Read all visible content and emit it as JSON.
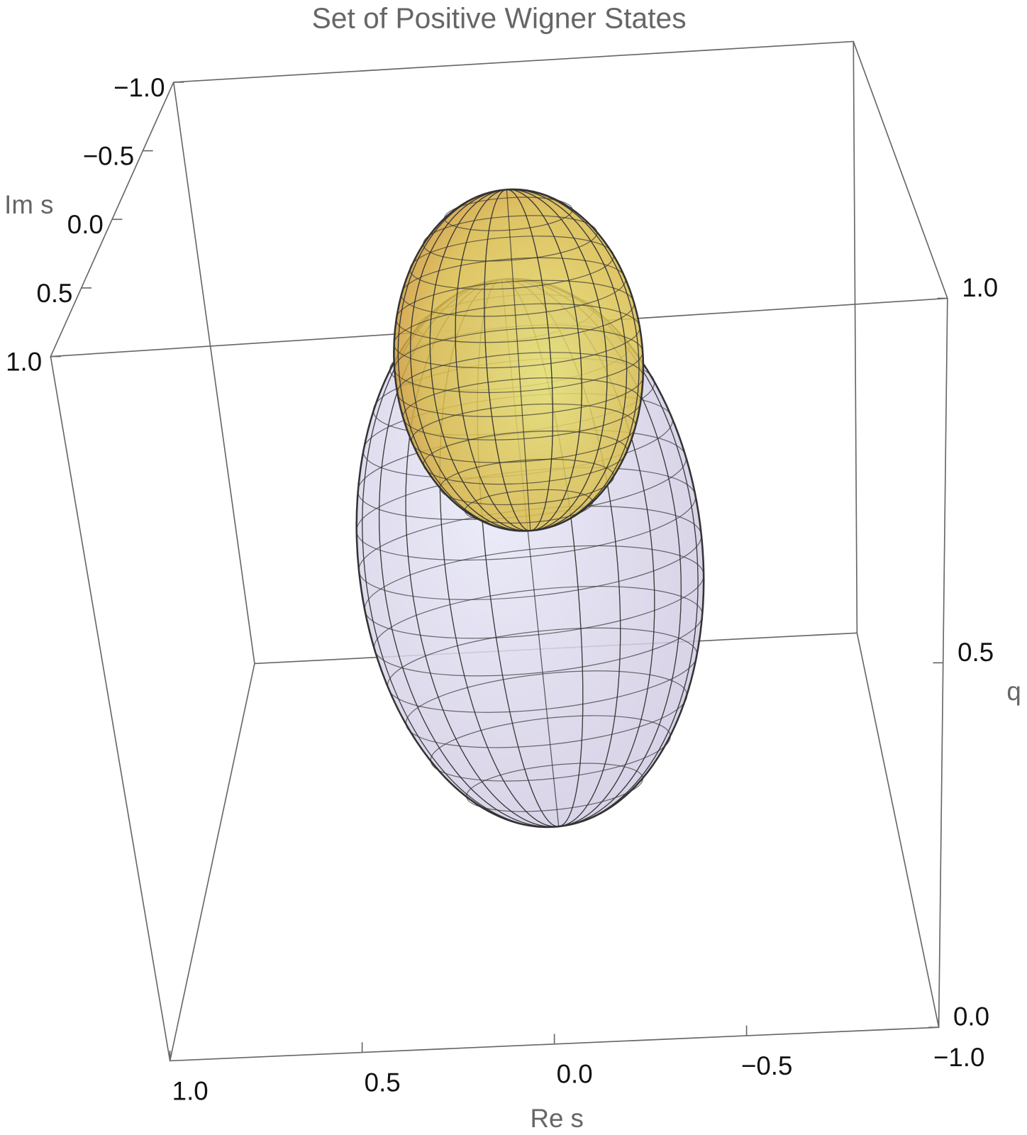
{
  "chart_data": {
    "type": "surface3d",
    "title": "Set of Positive Wigner States",
    "x_label": "Re s",
    "y_label": "Im s",
    "z_label": "q",
    "xlim": [
      1,
      -1
    ],
    "xticks": [
      {
        "value": 1,
        "label": "1.0"
      },
      0.5,
      {
        "value": 0,
        "label": "0.0"
      },
      {
        "value": -0.5,
        "label": "−0.5"
      },
      {
        "value": -1,
        "label": "−1.0"
      }
    ],
    "ylim": [
      -1,
      1
    ],
    "yticks": [
      {
        "value": -1,
        "label": "−1.0"
      },
      {
        "value": -0.5,
        "label": "−0.5"
      },
      {
        "value": 0,
        "label": "0.0"
      },
      0.5,
      {
        "value": 1,
        "label": "1.0"
      }
    ],
    "zlim": [
      0,
      1
    ],
    "zticks": [
      {
        "value": 0,
        "label": "0.0"
      },
      0.5,
      {
        "value": 1,
        "label": "1.0"
      }
    ]
  }
}
